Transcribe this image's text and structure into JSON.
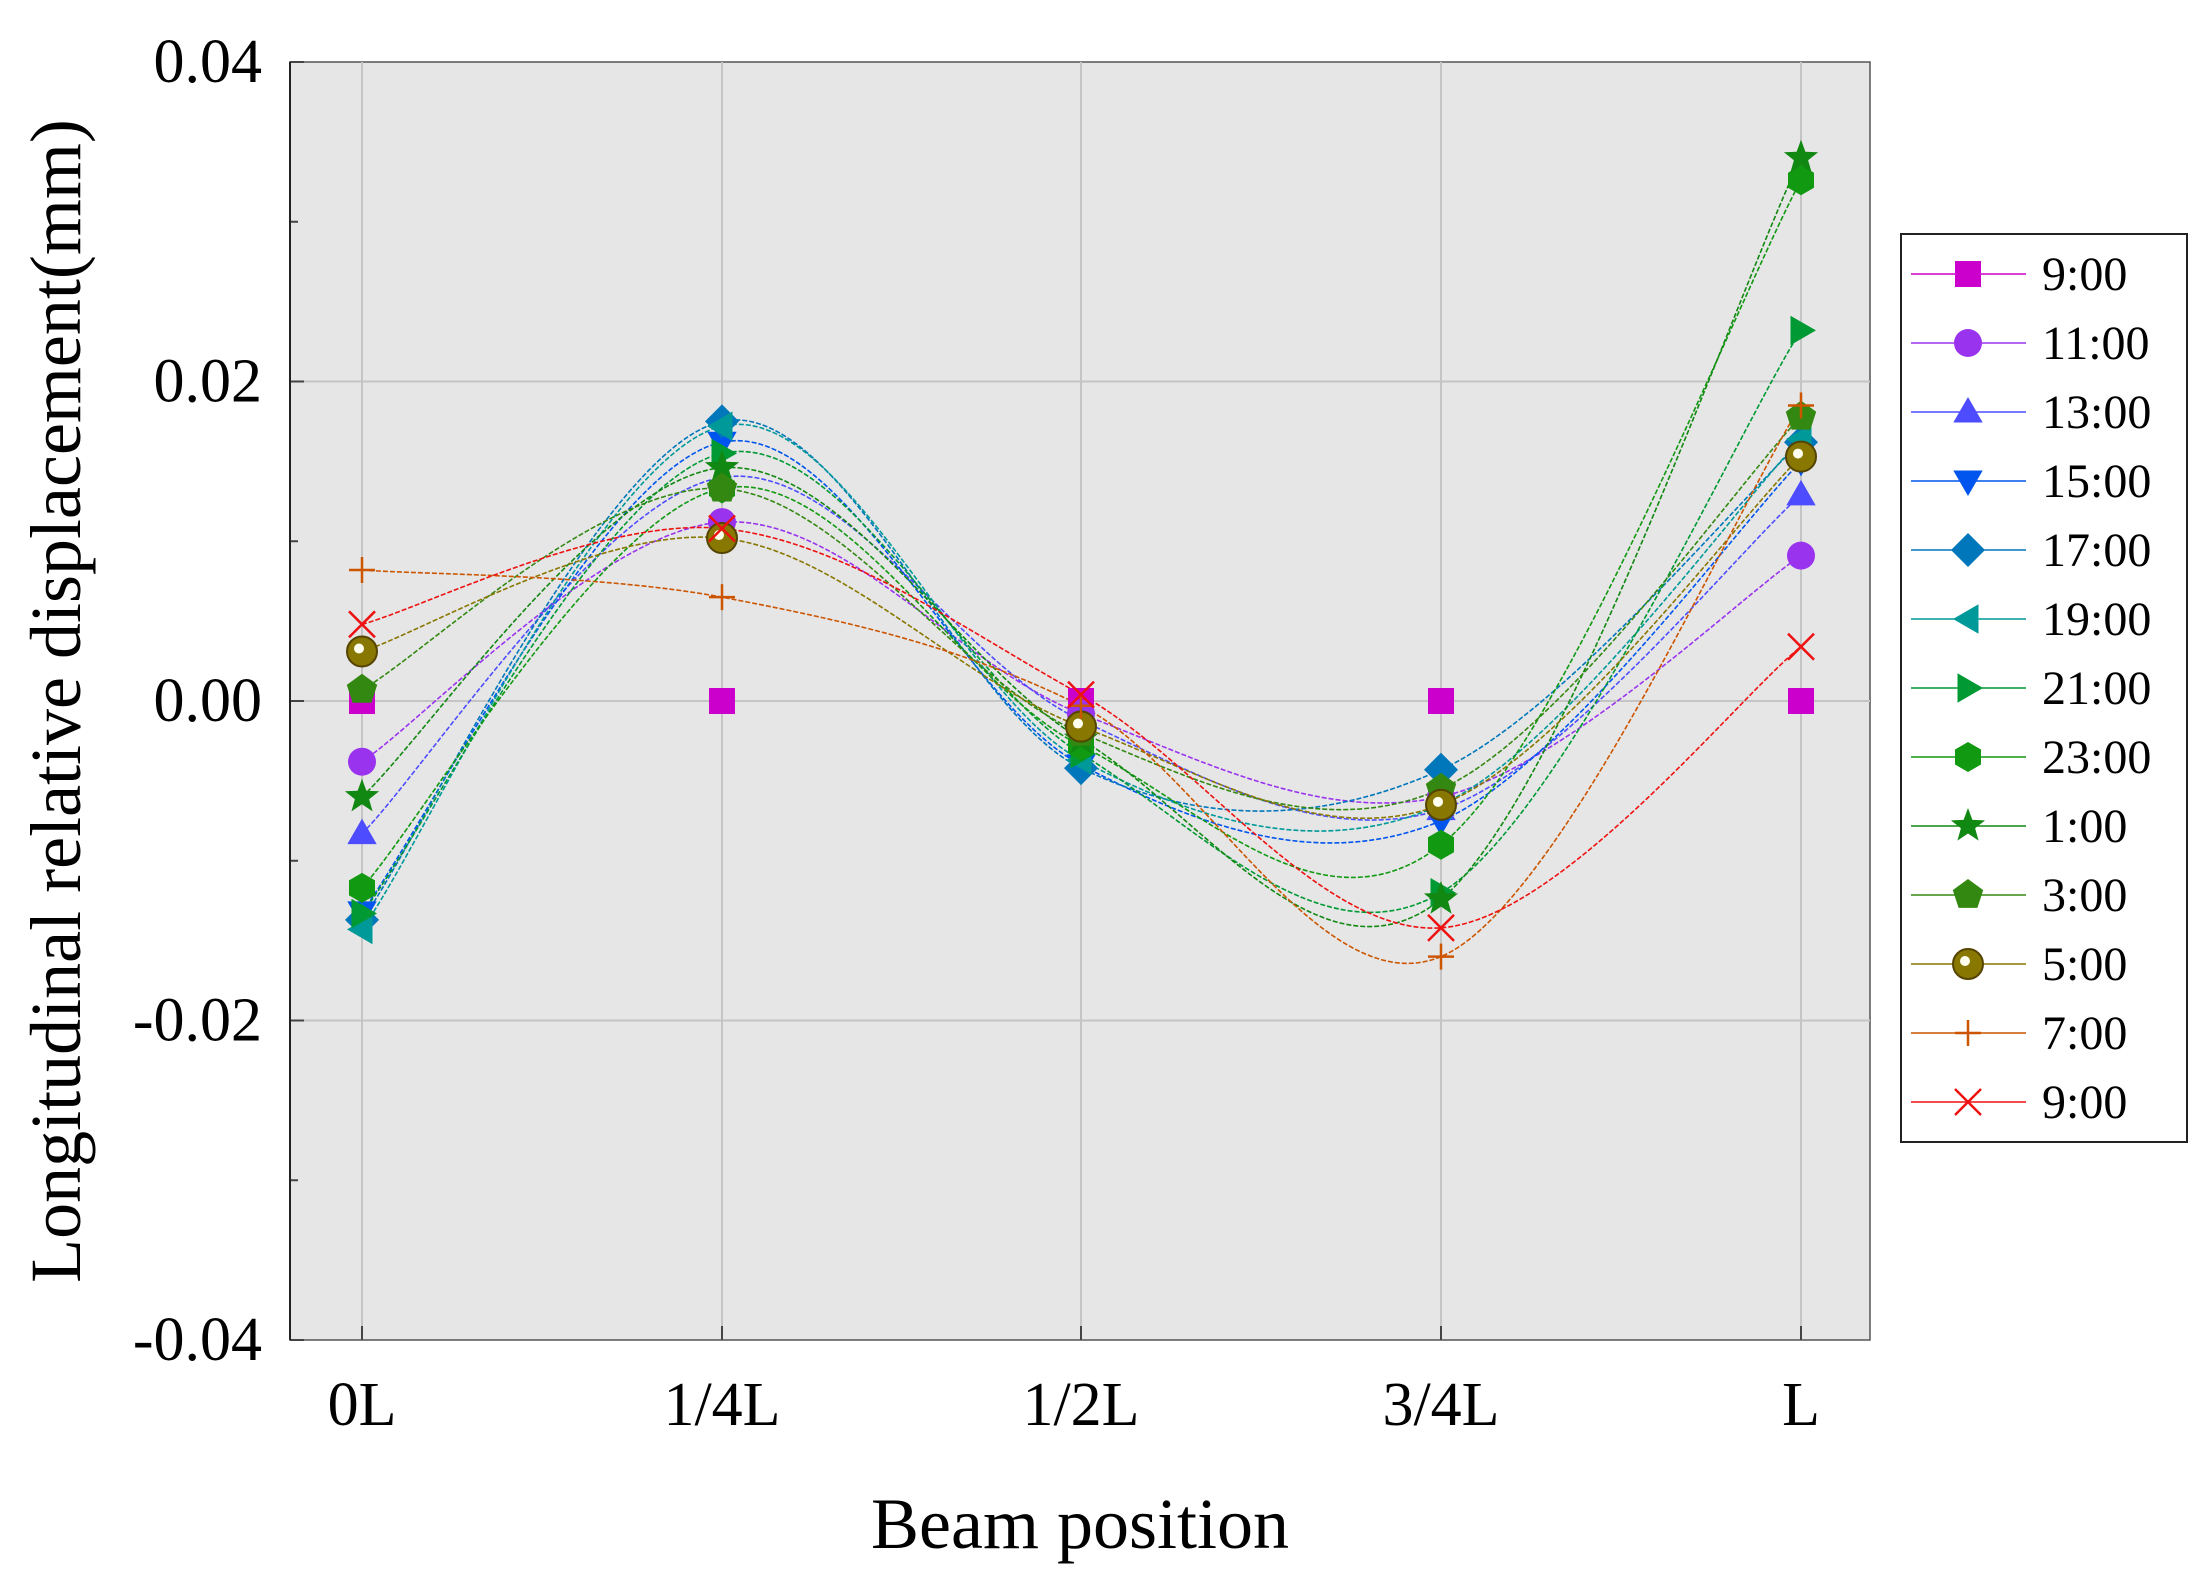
{
  "chart_data": {
    "type": "line",
    "title": "",
    "xlabel": "Beam position",
    "ylabel": "Longitudinal relative displacement(mm)",
    "categories": [
      "0L",
      "1/4L",
      "1/2L",
      "3/4L",
      "L"
    ],
    "ylim": [
      -0.04,
      0.04
    ],
    "yticks": [
      -0.04,
      -0.02,
      0.0,
      0.02,
      0.04
    ],
    "ytick_labels": [
      "-0.04",
      "-0.02",
      "0.00",
      "0.02",
      "0.04"
    ],
    "grid": true,
    "legend_position": "right",
    "series": [
      {
        "name": "9:00",
        "color": "#cc00cc",
        "marker": "square",
        "values": [
          0.0,
          0.0,
          0.0,
          0.0,
          0.0
        ]
      },
      {
        "name": "11:00",
        "color": "#9933ee",
        "marker": "circle",
        "values": [
          -0.0038,
          0.0112,
          -0.0008,
          -0.006,
          0.0091
        ]
      },
      {
        "name": "13:00",
        "color": "#4d4dff",
        "marker": "triangle-up",
        "values": [
          -0.0083,
          0.014,
          -0.0012,
          -0.0068,
          0.0129
        ]
      },
      {
        "name": "15:00",
        "color": "#0055ee",
        "marker": "triangle-down",
        "values": [
          -0.0132,
          0.0162,
          -0.004,
          -0.0075,
          0.015
        ]
      },
      {
        "name": "17:00",
        "color": "#0077bb",
        "marker": "diamond",
        "values": [
          -0.0137,
          0.0175,
          -0.0042,
          -0.0043,
          0.0162
        ]
      },
      {
        "name": "19:00",
        "color": "#009999",
        "marker": "triangle-left",
        "values": [
          -0.0143,
          0.0172,
          -0.0037,
          -0.0065,
          0.0164
        ]
      },
      {
        "name": "21:00",
        "color": "#009933",
        "marker": "triangle-right",
        "values": [
          -0.0133,
          0.0155,
          -0.0033,
          -0.012,
          0.0232
        ]
      },
      {
        "name": "23:00",
        "color": "#119911",
        "marker": "hexagon",
        "values": [
          -0.0117,
          0.0133,
          -0.0028,
          -0.009,
          0.0326
        ]
      },
      {
        "name": "1:00",
        "color": "#118811",
        "marker": "star",
        "values": [
          -0.006,
          0.0146,
          -0.0024,
          -0.0124,
          0.034
        ]
      },
      {
        "name": "3:00",
        "color": "#338811",
        "marker": "pentagon",
        "values": [
          0.0007,
          0.0133,
          -0.002,
          -0.0055,
          0.0178
        ]
      },
      {
        "name": "5:00",
        "color": "#887700",
        "marker": "sphere",
        "values": [
          0.0031,
          0.0102,
          -0.0016,
          -0.0065,
          0.0153
        ]
      },
      {
        "name": "7:00",
        "color": "#cc5500",
        "marker": "plus",
        "values": [
          0.0082,
          0.0065,
          -0.0003,
          -0.016,
          0.0185
        ]
      },
      {
        "name": "9:00",
        "color": "#ee1111",
        "marker": "x",
        "values": [
          0.0048,
          0.0108,
          0.0004,
          -0.0142,
          0.0034
        ]
      }
    ]
  }
}
